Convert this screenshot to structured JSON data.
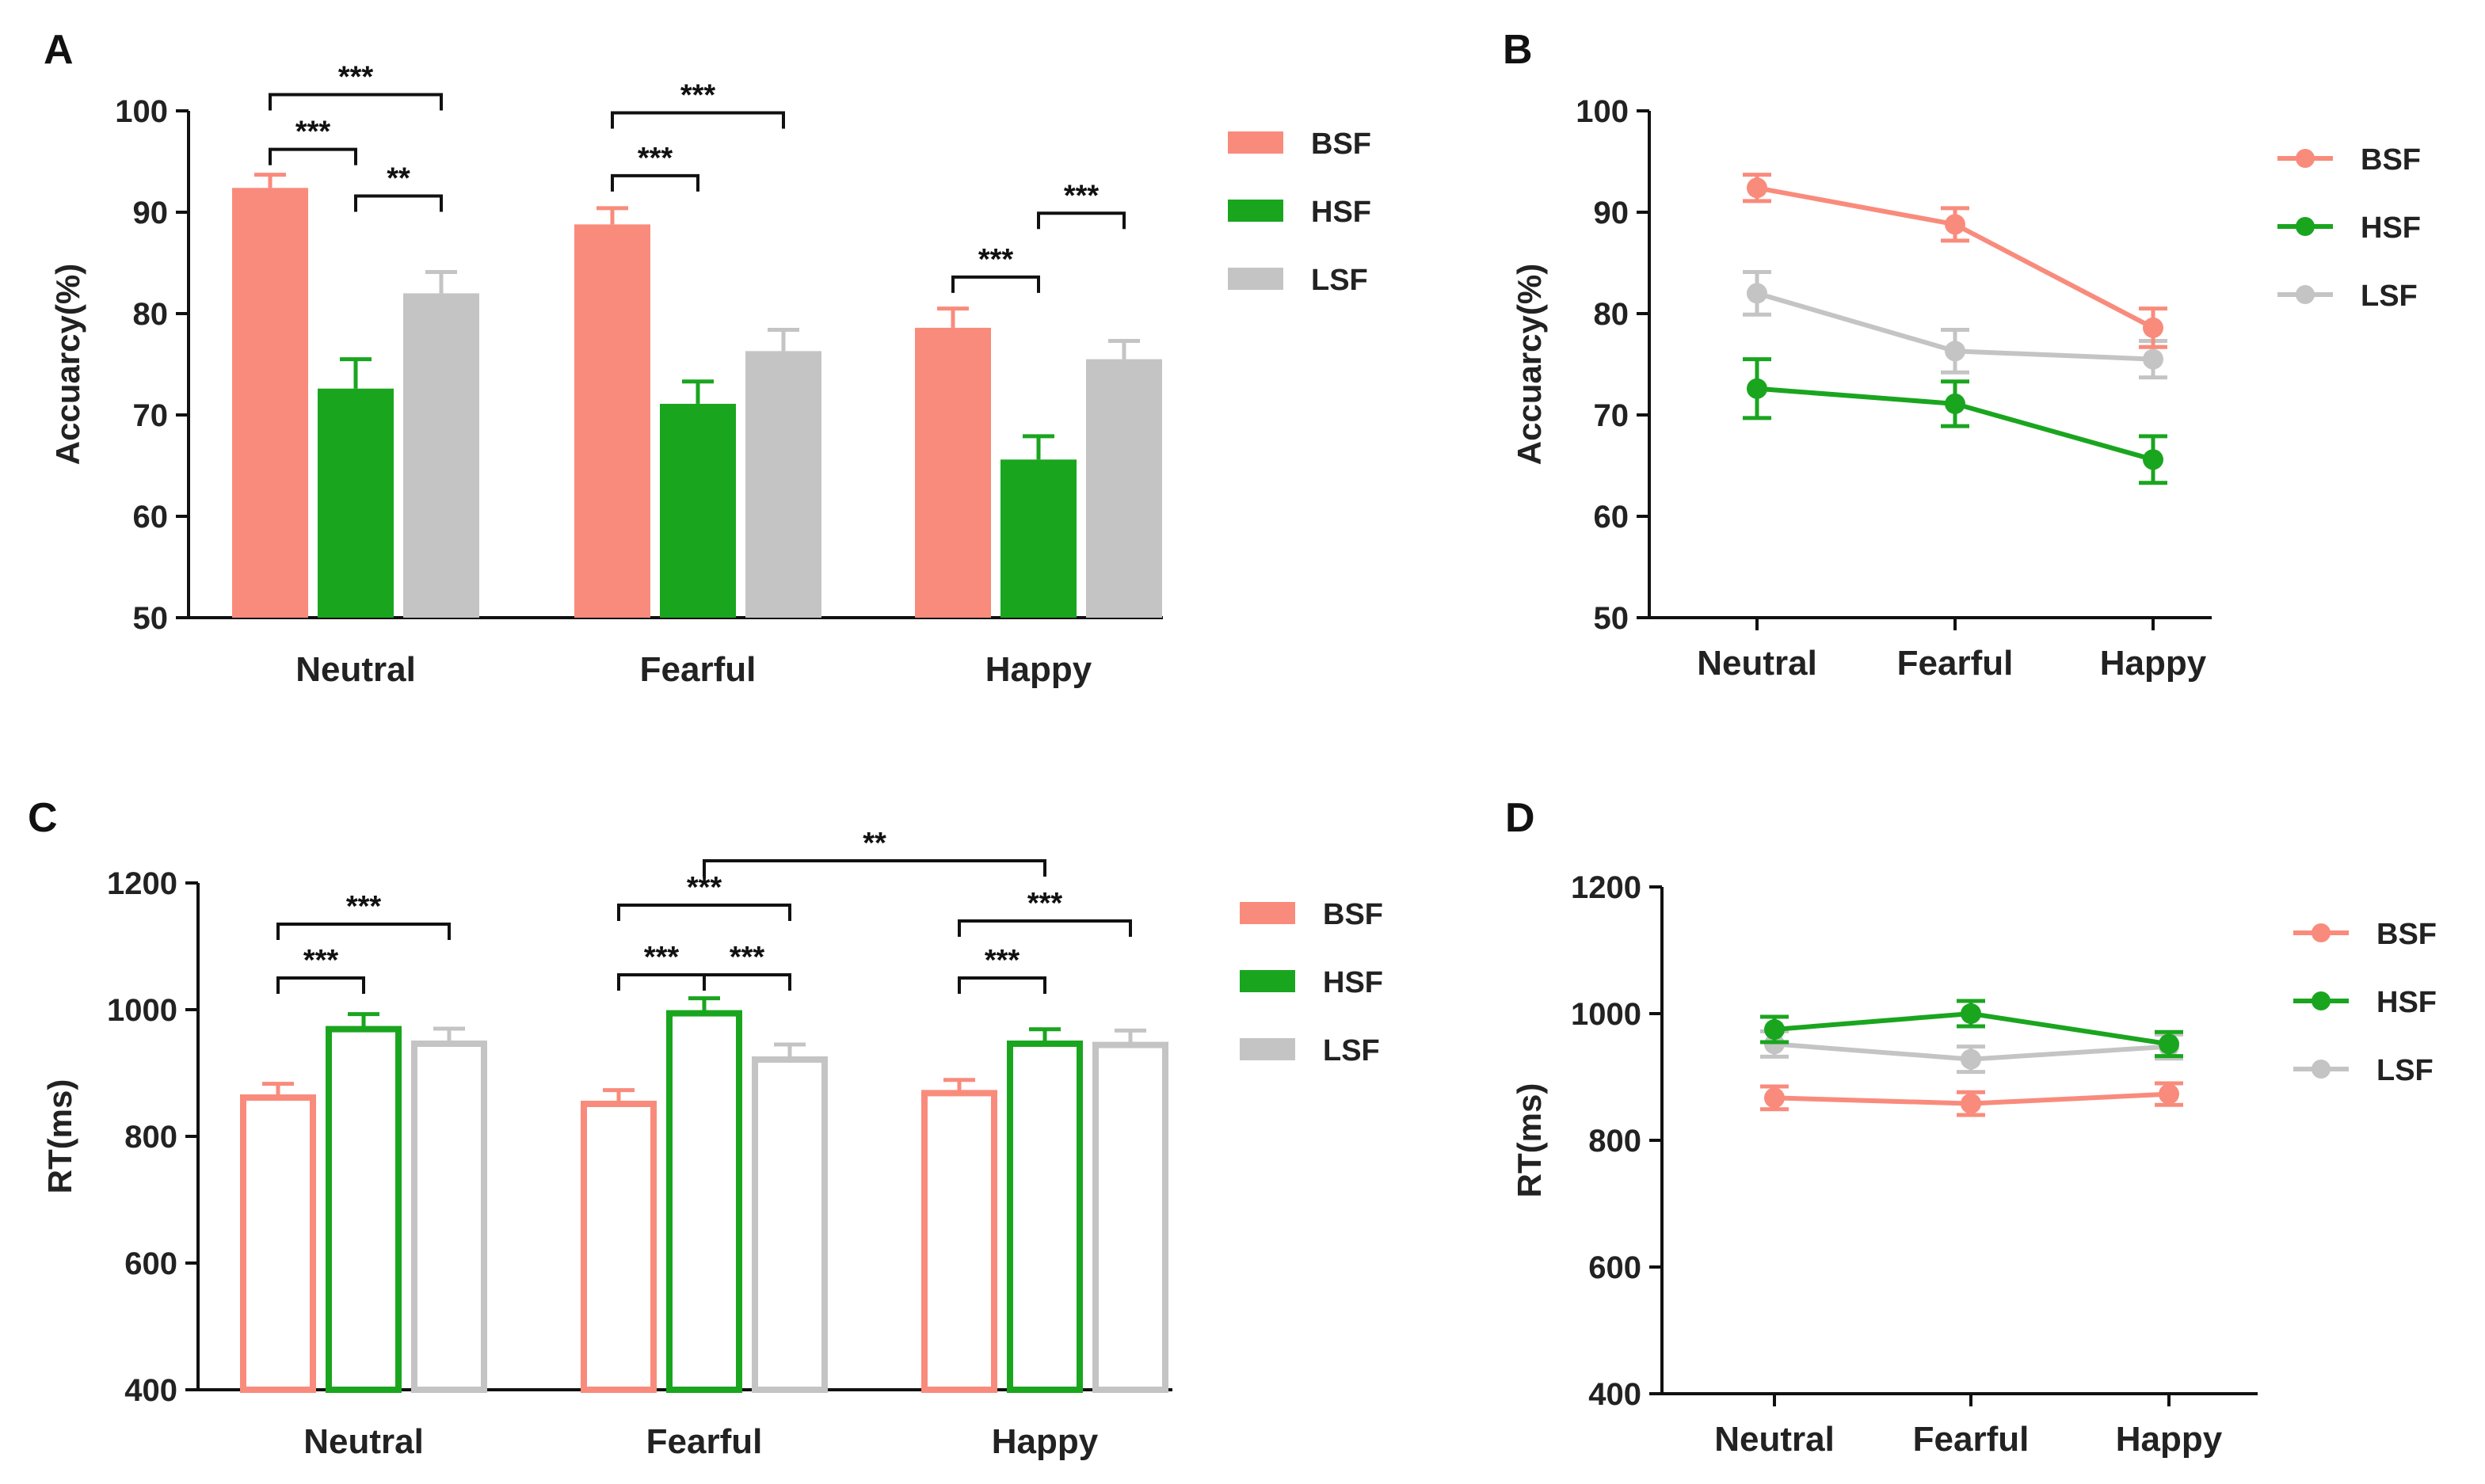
{
  "colors": {
    "BSF": "#f98b7c",
    "HSF": "#1aa51f",
    "LSF": "#c4c4c4",
    "axis": "#111111",
    "sig": "#111111"
  },
  "chart_data": [
    {
      "panel": "A",
      "type": "bar",
      "style": "filled",
      "categories": [
        "Neutral",
        "Fearful",
        "Happy"
      ],
      "series": [
        {
          "name": "BSF",
          "values": [
            92.4,
            88.8,
            78.6
          ],
          "errors": [
            1.3,
            1.6,
            1.9
          ]
        },
        {
          "name": "HSF",
          "values": [
            72.6,
            71.1,
            65.6
          ],
          "errors": [
            2.9,
            2.2,
            2.3
          ]
        },
        {
          "name": "LSF",
          "values": [
            82.0,
            76.3,
            75.5
          ],
          "errors": [
            2.1,
            2.1,
            1.8
          ]
        }
      ],
      "ylabel": "Accuarcy(%)",
      "ylim": [
        50,
        100
      ],
      "yticks": [
        50,
        60,
        70,
        80,
        90,
        100
      ],
      "legend": [
        "BSF",
        "HSF",
        "LSF"
      ],
      "significance": [
        {
          "from": [
            0,
            0
          ],
          "to": [
            0,
            1
          ],
          "label": "***",
          "at": 96.2
        },
        {
          "from": [
            0,
            0
          ],
          "to": [
            0,
            2
          ],
          "label": "***",
          "at": 101.6
        },
        {
          "from": [
            0,
            1
          ],
          "to": [
            0,
            2
          ],
          "label": "**",
          "at": 91.6
        },
        {
          "from": [
            1,
            0
          ],
          "to": [
            1,
            1
          ],
          "label": "***",
          "at": 93.6
        },
        {
          "from": [
            1,
            0
          ],
          "to": [
            1,
            2
          ],
          "label": "***",
          "at": 99.8
        },
        {
          "from": [
            2,
            0
          ],
          "to": [
            2,
            1
          ],
          "label": "***",
          "at": 83.6
        },
        {
          "from": [
            2,
            1
          ],
          "to": [
            2,
            2
          ],
          "label": "***",
          "at": 89.9
        }
      ]
    },
    {
      "panel": "B",
      "type": "line",
      "categories": [
        "Neutral",
        "Fearful",
        "Happy"
      ],
      "series": [
        {
          "name": "BSF",
          "values": [
            92.4,
            88.8,
            78.6
          ],
          "errors": [
            1.3,
            1.6,
            1.9
          ]
        },
        {
          "name": "HSF",
          "values": [
            72.6,
            71.1,
            65.6
          ],
          "errors": [
            2.9,
            2.2,
            2.3
          ]
        },
        {
          "name": "LSF",
          "values": [
            82.0,
            76.3,
            75.5
          ],
          "errors": [
            2.1,
            2.1,
            1.8
          ]
        }
      ],
      "ylabel": "Accuarcy(%)",
      "ylim": [
        50,
        100
      ],
      "yticks": [
        50,
        60,
        70,
        80,
        90,
        100
      ],
      "legend": [
        "BSF",
        "HSF",
        "LSF"
      ]
    },
    {
      "panel": "C",
      "type": "bar",
      "style": "hollow",
      "categories": [
        "Neutral",
        "Fearful",
        "Happy"
      ],
      "series": [
        {
          "name": "BSF",
          "values": [
            865,
            855,
            872
          ],
          "errors": [
            18,
            18,
            17
          ]
        },
        {
          "name": "HSF",
          "values": [
            973,
            998,
            950
          ],
          "errors": [
            20,
            20,
            19
          ]
        },
        {
          "name": "LSF",
          "values": [
            950,
            925,
            948
          ],
          "errors": [
            20,
            20,
            19
          ]
        }
      ],
      "ylabel": "RT(ms)",
      "ylim": [
        400,
        1200
      ],
      "yticks": [
        400,
        600,
        800,
        1000,
        1200
      ],
      "legend": [
        "BSF",
        "HSF",
        "LSF"
      ],
      "significance": [
        {
          "from": [
            0,
            0
          ],
          "to": [
            0,
            1
          ],
          "label": "***",
          "at": 1050
        },
        {
          "from": [
            0,
            0
          ],
          "to": [
            0,
            2
          ],
          "label": "***",
          "at": 1135
        },
        {
          "from": [
            1,
            0
          ],
          "to": [
            1,
            1
          ],
          "label": "***",
          "at": 1055
        },
        {
          "from": [
            1,
            1
          ],
          "to": [
            1,
            2
          ],
          "label": "***",
          "at": 1055
        },
        {
          "from": [
            1,
            0
          ],
          "to": [
            1,
            2
          ],
          "label": "***",
          "at": 1165
        },
        {
          "from": [
            1,
            1
          ],
          "to": [
            2,
            1
          ],
          "label": "**",
          "at": 1235
        },
        {
          "from": [
            2,
            0
          ],
          "to": [
            2,
            1
          ],
          "label": "***",
          "at": 1050
        },
        {
          "from": [
            2,
            0
          ],
          "to": [
            2,
            2
          ],
          "label": "***",
          "at": 1140
        }
      ]
    },
    {
      "panel": "D",
      "type": "line",
      "categories": [
        "Neutral",
        "Fearful",
        "Happy"
      ],
      "series": [
        {
          "name": "BSF",
          "values": [
            867,
            858,
            873
          ],
          "errors": [
            18,
            18,
            17
          ]
        },
        {
          "name": "HSF",
          "values": [
            975,
            1000,
            952
          ],
          "errors": [
            20,
            20,
            19
          ]
        },
        {
          "name": "LSF",
          "values": [
            952,
            928,
            948
          ],
          "errors": [
            20,
            20,
            19
          ]
        }
      ],
      "ylabel": "RT(ms)",
      "ylim": [
        400,
        1200
      ],
      "yticks": [
        400,
        600,
        800,
        1000,
        1200
      ],
      "legend": [
        "BSF",
        "HSF",
        "LSF"
      ]
    }
  ]
}
